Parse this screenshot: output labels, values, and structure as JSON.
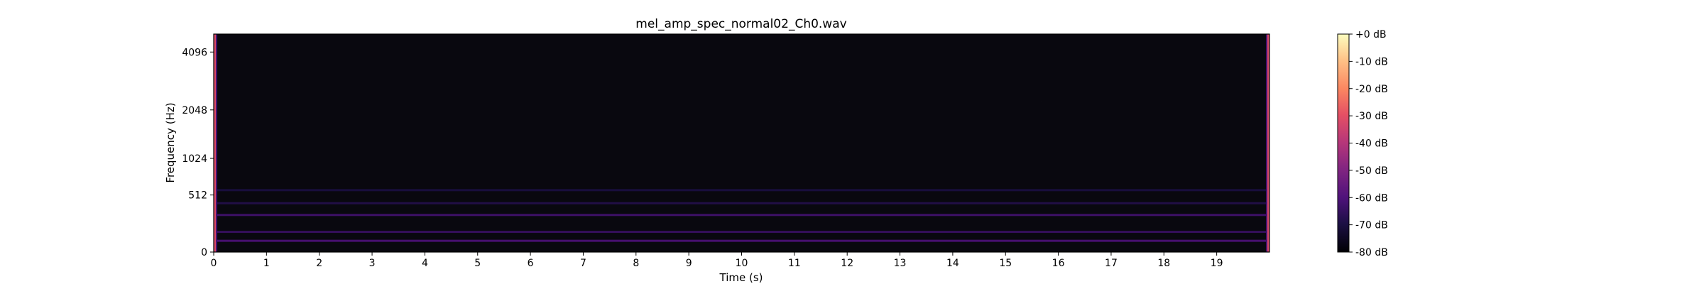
{
  "chart_data": {
    "type": "heatmap",
    "title": "mel_amp_spec_normal02_Ch0.wav",
    "xlabel": "Time (s)",
    "ylabel": "Frequency (Hz)",
    "x_ticks": [
      0,
      1,
      2,
      3,
      4,
      5,
      6,
      7,
      8,
      9,
      10,
      11,
      12,
      13,
      14,
      15,
      16,
      17,
      18,
      19
    ],
    "xlim": [
      0,
      20
    ],
    "y_scale": "mel",
    "y_ticks": [
      0,
      512,
      1024,
      2048,
      4096
    ],
    "ylim_hz": [
      0,
      5000
    ],
    "colorbar": {
      "labels": [
        "+0 dB",
        "-10 dB",
        "-20 dB",
        "-30 dB",
        "-40 dB",
        "-50 dB",
        "-60 dB",
        "-70 dB",
        "-80 dB"
      ],
      "range_db": [
        -80,
        0
      ],
      "colormap": "magma"
    },
    "background_level_db": -78,
    "harmonic_bands": [
      {
        "freq_hz": 80,
        "level_db": -60
      },
      {
        "freq_hz": 150,
        "level_db": -64
      },
      {
        "freq_hz": 300,
        "level_db": -62
      },
      {
        "freq_hz": 420,
        "level_db": -68
      },
      {
        "freq_hz": 570,
        "level_db": -70
      }
    ],
    "edge_level_db": -32,
    "grid": false,
    "legend": "none"
  }
}
